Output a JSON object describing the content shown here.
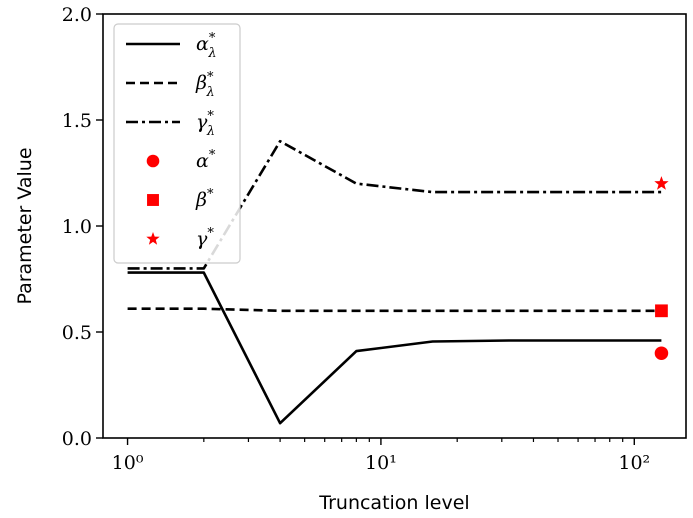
{
  "chart_data": {
    "type": "line",
    "title": "",
    "xlabel": "Truncation level",
    "ylabel": "Parameter Value",
    "xscale": "log",
    "xlim": [
      0.8,
      160
    ],
    "ylim": [
      0,
      2.0
    ],
    "x_ticks": [
      {
        "value": 1,
        "label": "10⁰"
      },
      {
        "value": 10,
        "label": "10¹"
      },
      {
        "value": 100,
        "label": "10²"
      }
    ],
    "y_ticks": [
      {
        "value": 0.0,
        "label": "0.0"
      },
      {
        "value": 0.5,
        "label": "0.5"
      },
      {
        "value": 1.0,
        "label": "1.0"
      },
      {
        "value": 1.5,
        "label": "1.5"
      },
      {
        "value": 2.0,
        "label": "2.0"
      }
    ],
    "grid": false,
    "legend_position": "upper-left",
    "x": [
      1,
      2,
      4,
      8,
      16,
      32,
      64,
      128
    ],
    "series": [
      {
        "name": "α*λ",
        "symbol": "α",
        "sup": "*",
        "sub": "λ",
        "style": "solid",
        "color": "#000000",
        "values": [
          0.78,
          0.78,
          0.07,
          0.41,
          0.455,
          0.46,
          0.46,
          0.46
        ]
      },
      {
        "name": "β*λ",
        "symbol": "β",
        "sup": "*",
        "sub": "λ",
        "style": "dashed",
        "color": "#000000",
        "values": [
          0.61,
          0.61,
          0.6,
          0.6,
          0.6,
          0.6,
          0.6,
          0.6
        ]
      },
      {
        "name": "γ*λ",
        "symbol": "γ",
        "sup": "*",
        "sub": "λ",
        "style": "dashdot",
        "color": "#000000",
        "values": [
          0.8,
          0.8,
          1.4,
          1.2,
          1.16,
          1.16,
          1.16,
          1.16
        ]
      }
    ],
    "points": [
      {
        "name": "α*",
        "symbol": "α",
        "sup": "*",
        "marker": "circle",
        "color": "#ff0000",
        "x": 128,
        "y": 0.4
      },
      {
        "name": "β*",
        "symbol": "β",
        "sup": "*",
        "marker": "square",
        "color": "#ff0000",
        "x": 128,
        "y": 0.6
      },
      {
        "name": "γ*",
        "symbol": "γ",
        "sup": "*",
        "marker": "star",
        "color": "#ff0000",
        "x": 128,
        "y": 1.2
      }
    ]
  }
}
